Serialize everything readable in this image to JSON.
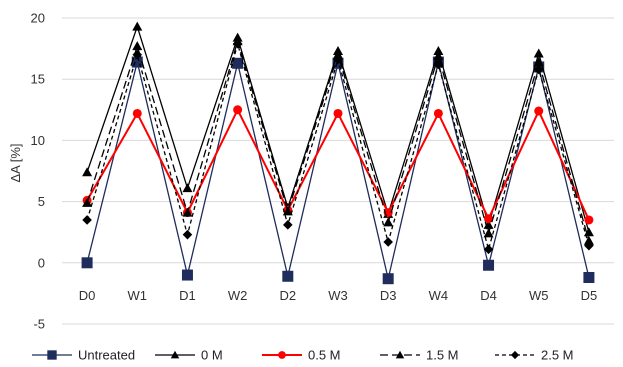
{
  "chart_data": {
    "type": "line",
    "title": "",
    "xlabel": "",
    "ylabel": "ΔA [%]",
    "ylim": [
      -5,
      20
    ],
    "yticks": [
      "20",
      "15",
      "10",
      "5",
      "0",
      "-5"
    ],
    "categories": [
      "D0",
      "W1",
      "D1",
      "W2",
      "D2",
      "W3",
      "D3",
      "W4",
      "D4",
      "W5",
      "D5"
    ],
    "grid": "horizontal",
    "legend": "bottom",
    "series": [
      {
        "name": "Untreated",
        "color": "#1f2d5c",
        "dash": "solid",
        "marker": "square",
        "values": [
          0.0,
          16.4,
          -1.0,
          16.3,
          -1.1,
          16.3,
          -1.3,
          16.4,
          -0.2,
          16.0,
          -1.2
        ]
      },
      {
        "name": "0 M",
        "color": "#000000",
        "dash": "solid",
        "marker": "triangle",
        "values": [
          7.4,
          19.3,
          6.1,
          18.4,
          4.5,
          17.3,
          4.0,
          17.3,
          3.1,
          17.1,
          2.5
        ]
      },
      {
        "name": "0.5 M",
        "color": "#ff0000",
        "dash": "solid",
        "marker": "circle",
        "values": [
          5.1,
          12.2,
          4.1,
          12.5,
          4.3,
          12.2,
          4.1,
          12.2,
          3.6,
          12.4,
          3.5
        ]
      },
      {
        "name": "1.5 M",
        "color": "#000000",
        "dash": "longdash",
        "marker": "triangle",
        "values": [
          4.9,
          17.7,
          4.1,
          18.1,
          4.2,
          17.0,
          3.3,
          16.9,
          2.4,
          16.4,
          1.8
        ]
      },
      {
        "name": "2.5 M",
        "color": "#000000",
        "dash": "shortdash",
        "marker": "diamond",
        "values": [
          3.5,
          17.0,
          2.3,
          17.9,
          3.1,
          16.6,
          1.7,
          16.2,
          1.1,
          15.8,
          1.4
        ]
      }
    ]
  }
}
